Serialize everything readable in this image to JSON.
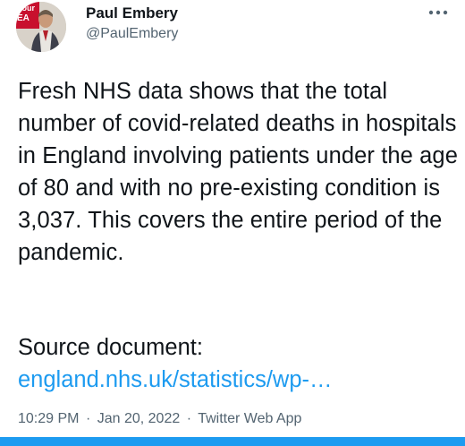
{
  "author": {
    "display_name": "Paul Embery",
    "handle": "@PaulEmbery",
    "avatar_banner_text": "oour EA"
  },
  "tweet": {
    "text": "Fresh NHS data shows that the total number of covid-related deaths in hospitals in England involving patients under the age of 80 and with no pre-existing condition is 3,037. This covers the entire period of the pandemic.",
    "source_label": "Source document:",
    "link_text": "england.nhs.uk/statistics/wp-…"
  },
  "meta": {
    "time": "10:29 PM",
    "separator": "·",
    "date": "Jan 20, 2022",
    "client": "Twitter Web App"
  },
  "icons": {
    "more": "more-horizontal-icon"
  },
  "colors": {
    "link": "#1d9bf0",
    "secondary_text": "#536471",
    "primary_text": "#0f1419",
    "accent_bar": "#1d9bf0"
  }
}
